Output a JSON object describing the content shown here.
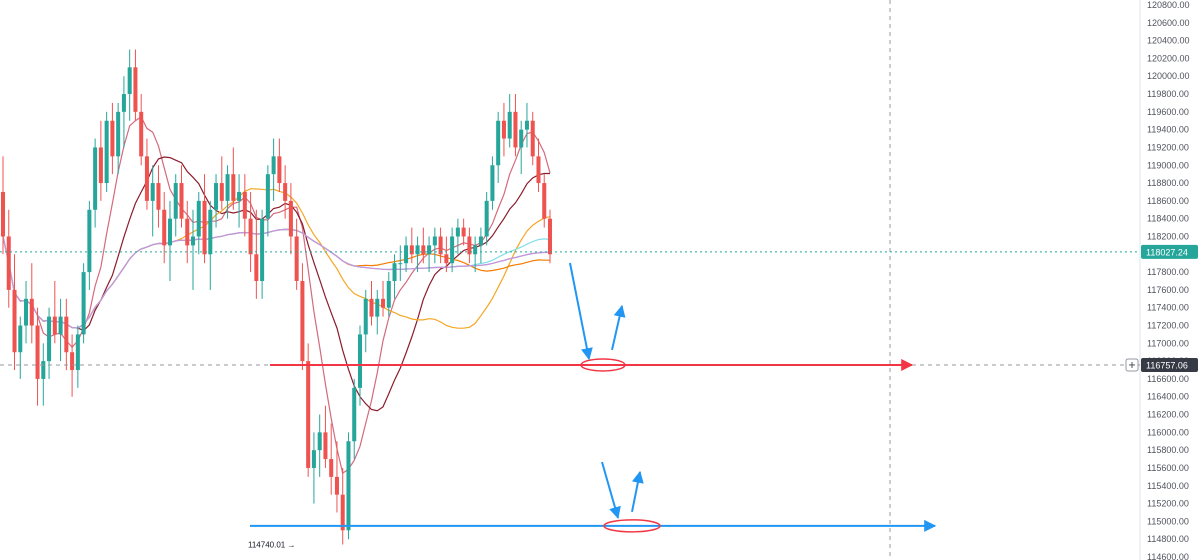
{
  "chart_data": {
    "type": "candlestick",
    "title": "",
    "xlabel": "",
    "ylabel": "",
    "ylim": [
      114600,
      120800
    ],
    "y_axis": {
      "position": "right",
      "ticks": [
        "114600.00",
        "114800.00",
        "115000.00",
        "115200.00",
        "115400.00",
        "115600.00",
        "115800.00",
        "116000.00",
        "116200.00",
        "116400.00",
        "116600.00",
        "116800.00",
        "117000.00",
        "117200.00",
        "117400.00",
        "117600.00",
        "117800.00",
        "118000.00",
        "118200.00",
        "118400.00",
        "118600.00",
        "118800.00",
        "119000.00",
        "119200.00",
        "119400.00",
        "119600.00",
        "119800.00",
        "120000.00",
        "120200.00",
        "120400.00",
        "120600.00",
        "120800.00"
      ]
    },
    "grid": false,
    "colors": {
      "up": "#26a69a",
      "down": "#ef5350",
      "support_red": "#f23645",
      "support_blue": "#2196f3",
      "arrow_blue": "#2196f3"
    },
    "current_price": {
      "value": 118027.24,
      "label": "118027.24",
      "color": "#26a69a"
    },
    "crosshair_price": {
      "value": 116757.06,
      "label": "116757.06",
      "color": "#363a45"
    },
    "low_marker": {
      "value": 114740.01,
      "label": "114740.01"
    },
    "annotations": [
      {
        "type": "horizontal-line",
        "value": 116757.06,
        "color": "#f23645"
      },
      {
        "type": "horizontal-line",
        "value": 114950,
        "color": "#2196f3"
      },
      {
        "type": "ellipse",
        "value": 116757.06,
        "color": "#f23645"
      },
      {
        "type": "ellipse",
        "value": 114950,
        "color": "#f23645"
      },
      {
        "type": "arrow-pair",
        "target": 116757.06,
        "color": "#2196f3"
      },
      {
        "type": "arrow-pair",
        "target": 114950,
        "color": "#2196f3"
      }
    ],
    "candles": [
      [
        118700,
        119100,
        118000,
        118200
      ],
      [
        118200,
        118500,
        117400,
        117600
      ],
      [
        117600,
        118000,
        116700,
        116900
      ],
      [
        116900,
        117300,
        116600,
        117200
      ],
      [
        117200,
        117700,
        117000,
        117500
      ],
      [
        117500,
        117900,
        117000,
        117200
      ],
      [
        117200,
        117400,
        116300,
        116600
      ],
      [
        116600,
        117000,
        116300,
        116800
      ],
      [
        116800,
        117400,
        116600,
        117300
      ],
      [
        117300,
        117700,
        117000,
        117100
      ],
      [
        117100,
        117500,
        116800,
        117300
      ],
      [
        117300,
        117500,
        116700,
        116900
      ],
      [
        116900,
        117100,
        116400,
        116700
      ],
      [
        116700,
        117200,
        116500,
        117100
      ],
      [
        117100,
        117900,
        117000,
        117800
      ],
      [
        117800,
        118600,
        117600,
        118500
      ],
      [
        118500,
        119300,
        118300,
        119200
      ],
      [
        119200,
        119500,
        118600,
        118800
      ],
      [
        118800,
        119600,
        118700,
        119500
      ],
      [
        119500,
        119700,
        118900,
        119100
      ],
      [
        119100,
        119700,
        118900,
        119600
      ],
      [
        119600,
        120000,
        119200,
        119800
      ],
      [
        119800,
        120300,
        119500,
        120100
      ],
      [
        120100,
        120300,
        119500,
        119600
      ],
      [
        119600,
        119800,
        119000,
        119100
      ],
      [
        119100,
        119300,
        118500,
        118600
      ],
      [
        118600,
        119000,
        118200,
        118800
      ],
      [
        118800,
        119000,
        118300,
        118500
      ],
      [
        118500,
        118700,
        117900,
        118100
      ],
      [
        118100,
        118600,
        117700,
        118400
      ],
      [
        118400,
        118900,
        118200,
        118800
      ],
      [
        118800,
        119000,
        118300,
        118400
      ],
      [
        118400,
        118600,
        117900,
        118100
      ],
      [
        118100,
        118500,
        117600,
        118200
      ],
      [
        118200,
        118700,
        118000,
        118600
      ],
      [
        118600,
        118900,
        117900,
        118000
      ],
      [
        118000,
        118600,
        117600,
        118500
      ],
      [
        118500,
        118900,
        118300,
        118800
      ],
      [
        118800,
        119100,
        118500,
        118600
      ],
      [
        118600,
        119000,
        118400,
        118900
      ],
      [
        118900,
        119200,
        118500,
        118600
      ],
      [
        118600,
        118900,
        118300,
        118700
      ],
      [
        118700,
        118900,
        118200,
        118400
      ],
      [
        118400,
        118700,
        117800,
        118000
      ],
      [
        118000,
        118500,
        117500,
        117700
      ],
      [
        117700,
        118500,
        117500,
        118400
      ],
      [
        118400,
        119000,
        118200,
        118900
      ],
      [
        118900,
        119300,
        118600,
        119100
      ],
      [
        119100,
        119300,
        118700,
        118800
      ],
      [
        118800,
        119000,
        118400,
        118600
      ],
      [
        118600,
        118800,
        118000,
        118200
      ],
      [
        118200,
        118400,
        117600,
        117700
      ],
      [
        117700,
        117900,
        116700,
        116800
      ],
      [
        116800,
        117000,
        115500,
        115600
      ],
      [
        115600,
        116000,
        115200,
        115800
      ],
      [
        115800,
        116200,
        115500,
        116000
      ],
      [
        116000,
        116300,
        115600,
        115700
      ],
      [
        115700,
        116100,
        115300,
        115500
      ],
      [
        115500,
        115900,
        115100,
        115300
      ],
      [
        115300,
        115600,
        114740.01,
        114900
      ],
      [
        114900,
        116000,
        114800,
        115900
      ],
      [
        115900,
        116600,
        115700,
        116500
      ],
      [
        116500,
        117200,
        116300,
        117100
      ],
      [
        117100,
        117600,
        116900,
        117500
      ],
      [
        117500,
        117700,
        117200,
        117300
      ],
      [
        117300,
        117600,
        117100,
        117500
      ],
      [
        117500,
        117700,
        117300,
        117400
      ],
      [
        117400,
        117800,
        117300,
        117700
      ],
      [
        117700,
        118000,
        117500,
        117900
      ],
      [
        117900,
        118100,
        117700,
        117900
      ],
      [
        117900,
        118200,
        117800,
        118100
      ],
      [
        118100,
        118300,
        117900,
        118000
      ],
      [
        118000,
        118200,
        117800,
        118100
      ],
      [
        118100,
        118300,
        117900,
        118000
      ],
      [
        118000,
        118200,
        117800,
        118100
      ],
      [
        118100,
        118300,
        117900,
        118200
      ],
      [
        118200,
        118300,
        117900,
        118000
      ],
      [
        118000,
        118200,
        117800,
        117900
      ],
      [
        117900,
        118300,
        117800,
        118200
      ],
      [
        118200,
        118400,
        118000,
        118300
      ],
      [
        118300,
        118400,
        118100,
        118200
      ],
      [
        118200,
        118300,
        117900,
        118000
      ],
      [
        118000,
        118200,
        117800,
        118100
      ],
      [
        118100,
        118300,
        117900,
        118200
      ],
      [
        118200,
        118700,
        118100,
        118600
      ],
      [
        118600,
        119100,
        118500,
        119000
      ],
      [
        119000,
        119600,
        118800,
        119500
      ],
      [
        119500,
        119700,
        119100,
        119300
      ],
      [
        119300,
        119800,
        119200,
        119600
      ],
      [
        119600,
        119800,
        119100,
        119200
      ],
      [
        119200,
        119500,
        118900,
        119400
      ],
      [
        119400,
        119700,
        119200,
        119500
      ],
      [
        119500,
        119600,
        119000,
        119100
      ],
      [
        119100,
        119300,
        118700,
        118800
      ],
      [
        118800,
        118900,
        118300,
        118400
      ],
      [
        118400,
        118500,
        117900,
        118000
      ]
    ],
    "moving_averages": [
      {
        "color": "#d46a7e",
        "period": 7
      },
      {
        "color": "#8b1c2b",
        "period": 14
      },
      {
        "color": "#f5a623",
        "period": 30
      },
      {
        "color": "#f57c00",
        "period": 60
      },
      {
        "color": "#42a5f5",
        "period": 120
      },
      {
        "color": "#80deea",
        "period": 80
      },
      {
        "color": "#ce93d8",
        "period": 200
      }
    ]
  }
}
